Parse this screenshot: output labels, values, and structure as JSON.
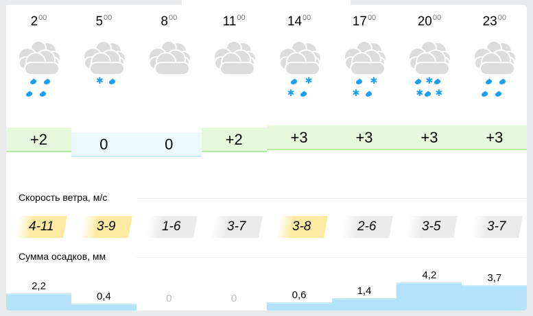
{
  "labels": {
    "wind": "Скорость ветра, м/с",
    "precip": "Сумма осадков, мм"
  },
  "colors": {
    "warm_bg": "#e6f9dc",
    "zero_bg": "#ecf9fd",
    "wind_strong": "#fdeba4",
    "wind_weak": "#ebebec",
    "precip": "#b3e2fb",
    "symbol": "#1a9ff2"
  },
  "columns": [
    {
      "hour": "2",
      "minutes": "00",
      "icon": "cloud-rain",
      "precip_rows": [
        [
          "drop",
          "drop"
        ],
        [
          "drop",
          "drop"
        ]
      ],
      "temp": "+2",
      "temp_value": 2,
      "wind": "4-11",
      "wind_level": "strong",
      "precip": "2,2",
      "precip_value": 2.2
    },
    {
      "hour": "5",
      "minutes": "00",
      "icon": "cloud-sleet",
      "precip_rows": [
        [
          "snow",
          "drop"
        ]
      ],
      "temp": "0",
      "temp_value": 0,
      "wind": "3-9",
      "wind_level": "strong",
      "precip": "0,4",
      "precip_value": 0.4
    },
    {
      "hour": "8",
      "minutes": "00",
      "icon": "cloud",
      "precip_rows": [],
      "temp": "0",
      "temp_value": 0,
      "wind": "1-6",
      "wind_level": "weak",
      "precip": "0",
      "precip_value": 0
    },
    {
      "hour": "11",
      "minutes": "00",
      "icon": "cloud",
      "precip_rows": [],
      "temp": "+2",
      "temp_value": 2,
      "wind": "3-7",
      "wind_level": "weak",
      "precip": "0",
      "precip_value": 0
    },
    {
      "hour": "14",
      "minutes": "00",
      "icon": "cloud-sleet",
      "precip_rows": [
        [
          "drop",
          "snow"
        ],
        [
          "snow",
          "drop"
        ]
      ],
      "temp": "+3",
      "temp_value": 3,
      "wind": "3-8",
      "wind_level": "strong",
      "precip": "0,6",
      "precip_value": 0.6
    },
    {
      "hour": "17",
      "minutes": "00",
      "icon": "cloud-sleet",
      "precip_rows": [
        [
          "drop",
          "snow"
        ],
        [
          "snow",
          "drop"
        ]
      ],
      "temp": "+3",
      "temp_value": 3,
      "wind": "2-6",
      "wind_level": "weak",
      "precip": "1,4",
      "precip_value": 1.4
    },
    {
      "hour": "20",
      "minutes": "00",
      "icon": "cloud-sleet",
      "precip_rows": [
        [
          "drop",
          "snow",
          "drop"
        ],
        [
          "snow",
          "drop",
          "snow"
        ]
      ],
      "temp": "+3",
      "temp_value": 3,
      "wind": "3-5",
      "wind_level": "weak",
      "precip": "4,2",
      "precip_value": 4.2
    },
    {
      "hour": "23",
      "minutes": "00",
      "icon": "cloud-rain",
      "precip_rows": [
        [
          "drop",
          "drop"
        ],
        [
          "drop",
          "drop"
        ]
      ],
      "temp": "+3",
      "temp_value": 3,
      "wind": "3-7",
      "wind_level": "weak",
      "precip": "3,7",
      "precip_value": 3.7
    }
  ]
}
